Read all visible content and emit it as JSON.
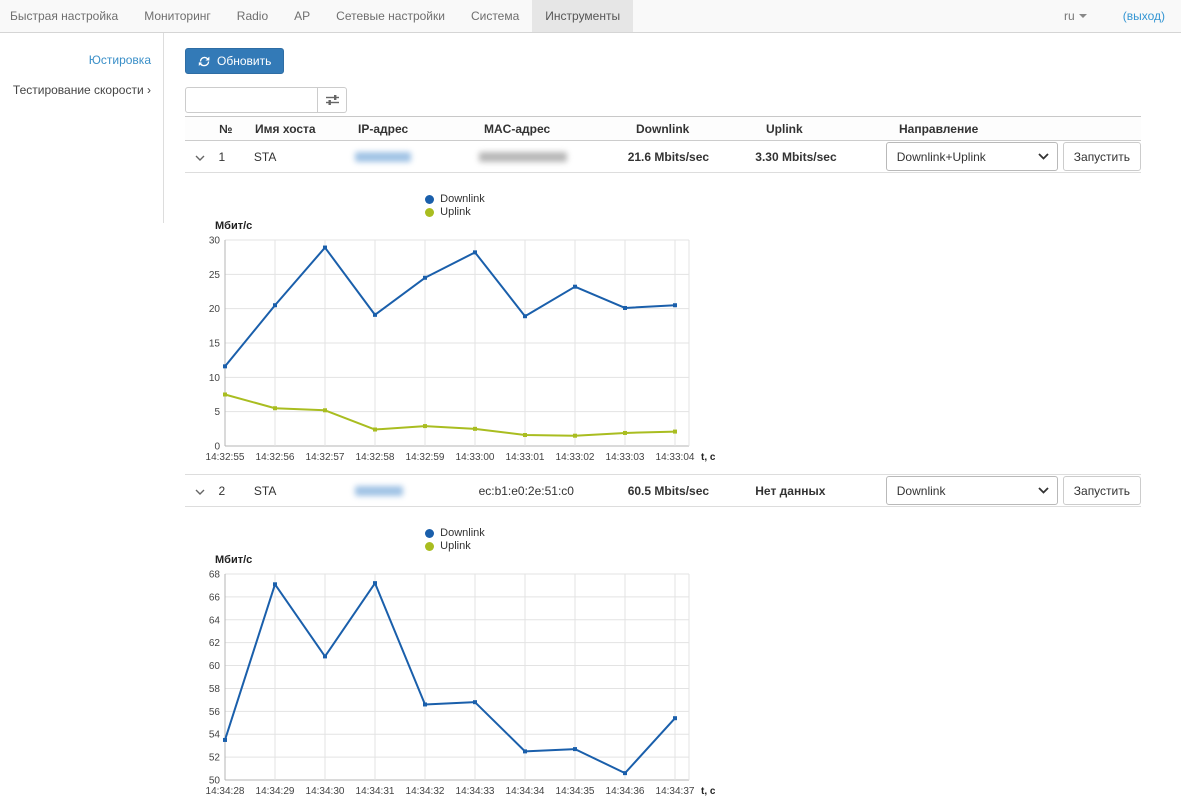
{
  "nav": {
    "items": [
      {
        "label": "Быстрая настройка",
        "active": false
      },
      {
        "label": "Мониторинг",
        "active": false
      },
      {
        "label": "Radio",
        "active": false
      },
      {
        "label": "AP",
        "active": false
      },
      {
        "label": "Сетевые настройки",
        "active": false
      },
      {
        "label": "Система",
        "active": false
      },
      {
        "label": "Инструменты",
        "active": true
      }
    ],
    "language": "ru",
    "logout_label": "(выход)"
  },
  "sidebar": {
    "items": [
      {
        "label": "Юстировка"
      },
      {
        "label": "Тестирование скорости ›"
      }
    ]
  },
  "toolbar": {
    "refresh_label": "Обновить"
  },
  "search": {
    "value": "",
    "placeholder": ""
  },
  "table": {
    "headers": [
      "№",
      "Имя хоста",
      "IP-адрес",
      "MAC-адрес",
      "Downlink",
      "Uplink",
      "Направление"
    ],
    "rows": [
      {
        "num": "1",
        "host": "STA",
        "ip_redacted": true,
        "mac": "",
        "mac_redacted": true,
        "downlink": "21.6 Mbits/sec",
        "uplink": "3.30 Mbits/sec",
        "direction": "Downlink+Uplink",
        "run_label": "Запустить"
      },
      {
        "num": "2",
        "host": "STA",
        "ip_redacted": true,
        "mac": "ec:b1:e0:2e:51:c0",
        "mac_redacted": false,
        "downlink": "60.5 Mbits/sec",
        "uplink": "Нет данных",
        "direction": "Downlink",
        "run_label": "Запустить"
      }
    ]
  },
  "chart_data": [
    {
      "type": "line",
      "title": "",
      "ylabel": "Мбит/с",
      "xlabel": "t, c",
      "ymin": 0,
      "ymax": 30,
      "yticks": [
        0,
        5,
        10,
        15,
        20,
        25,
        30
      ],
      "grid": true,
      "legend_position": "top-center",
      "categories": [
        "14:32:55",
        "14:32:56",
        "14:32:57",
        "14:32:58",
        "14:32:59",
        "14:33:00",
        "14:33:01",
        "14:33:02",
        "14:33:03",
        "14:33:04"
      ],
      "series": [
        {
          "name": "Downlink",
          "color": "#1a5fab",
          "values": [
            11.6,
            20.5,
            28.9,
            19.1,
            24.5,
            28.2,
            18.9,
            23.2,
            20.1,
            20.5
          ]
        },
        {
          "name": "Uplink",
          "color": "#a9bd20",
          "values": [
            7.5,
            5.5,
            5.2,
            2.4,
            2.9,
            2.5,
            1.6,
            1.5,
            1.9,
            2.1
          ]
        }
      ]
    },
    {
      "type": "line",
      "title": "",
      "ylabel": "Мбит/с",
      "xlabel": "t, c",
      "ymin": 50,
      "ymax": 68,
      "yticks": [
        50,
        52,
        54,
        56,
        58,
        60,
        62,
        64,
        66,
        68
      ],
      "grid": true,
      "legend_position": "top-center",
      "categories": [
        "14:34:28",
        "14:34:29",
        "14:34:30",
        "14:34:31",
        "14:34:32",
        "14:34:33",
        "14:34:34",
        "14:34:35",
        "14:34:36",
        "14:34:37"
      ],
      "series": [
        {
          "name": "Downlink",
          "color": "#1a5fab",
          "values": [
            53.5,
            67.1,
            60.8,
            67.2,
            56.6,
            56.8,
            52.5,
            52.7,
            50.6,
            55.4
          ]
        },
        {
          "name": "Uplink",
          "color": "#a9bd20",
          "values": []
        }
      ]
    }
  ],
  "colors": {
    "accent": "#337ab7",
    "link": "#3596d3",
    "downlink": "#1a5fab",
    "uplink": "#a9bd20",
    "active_tab_bg": "#e6e6e6"
  }
}
